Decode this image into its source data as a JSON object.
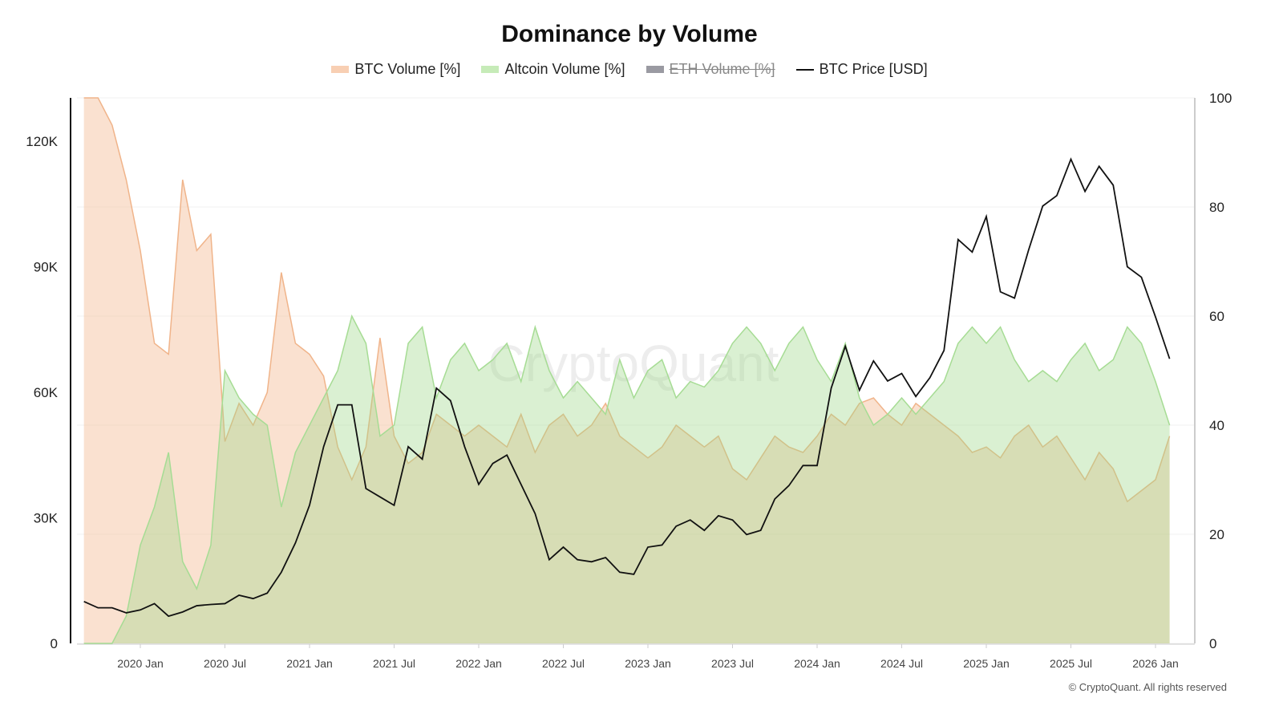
{
  "chart_data": {
    "type": "area",
    "title": "Dominance by Volume",
    "legend_position": "top",
    "grid": true,
    "x": [
      "2019-09",
      "2019-10",
      "2019-11",
      "2019-12",
      "2020-01",
      "2020-02",
      "2020-03",
      "2020-04",
      "2020-05",
      "2020-06",
      "2020-07",
      "2020-08",
      "2020-09",
      "2020-10",
      "2020-11",
      "2020-12",
      "2021-01",
      "2021-02",
      "2021-03",
      "2021-04",
      "2021-05",
      "2021-06",
      "2021-07",
      "2021-08",
      "2021-09",
      "2021-10",
      "2021-11",
      "2021-12",
      "2022-01",
      "2022-02",
      "2022-03",
      "2022-04",
      "2022-05",
      "2022-06",
      "2022-07",
      "2022-08",
      "2022-09",
      "2022-10",
      "2022-11",
      "2022-12",
      "2023-01",
      "2023-02",
      "2023-03",
      "2023-04",
      "2023-05",
      "2023-06",
      "2023-07",
      "2023-08",
      "2023-09",
      "2023-10",
      "2023-11",
      "2023-12",
      "2024-01",
      "2024-02",
      "2024-03",
      "2024-04",
      "2024-05",
      "2024-06",
      "2024-07",
      "2024-08",
      "2024-09",
      "2024-10",
      "2024-11",
      "2024-12",
      "2025-01",
      "2025-02",
      "2025-03",
      "2025-04",
      "2025-05",
      "2025-06",
      "2025-07",
      "2025-08",
      "2025-09",
      "2025-10",
      "2025-11",
      "2025-12",
      "2026-01",
      "2026-02"
    ],
    "x_ticks": [
      "2020 Jan",
      "2020 Jul",
      "2021 Jan",
      "2021 Jul",
      "2022 Jan",
      "2022 Jul",
      "2023 Jan",
      "2023 Jul",
      "2024 Jan",
      "2024 Jul",
      "2025 Jan",
      "2025 Jul",
      "2026 Jan"
    ],
    "y_left": {
      "ticks": [
        "0",
        "30K",
        "60K",
        "90K",
        "120K"
      ],
      "range": [
        0,
        130000
      ]
    },
    "y_right": {
      "ticks": [
        "0",
        "20",
        "40",
        "60",
        "80",
        "100"
      ],
      "range": [
        0,
        100
      ]
    },
    "series": [
      {
        "name": "BTC Volume [%]",
        "axis": "right",
        "kind": "area",
        "color": "#f0b48a",
        "visible": true,
        "values": [
          100,
          100,
          95,
          85,
          72,
          55,
          53,
          85,
          72,
          75,
          37,
          44,
          40,
          46,
          68,
          55,
          53,
          49,
          36,
          30,
          36,
          56,
          38,
          33,
          35,
          42,
          40,
          38,
          40,
          38,
          36,
          42,
          35,
          40,
          42,
          38,
          40,
          44,
          38,
          36,
          34,
          36,
          40,
          38,
          36,
          38,
          32,
          30,
          34,
          38,
          36,
          35,
          38,
          42,
          40,
          44,
          45,
          42,
          40,
          44,
          42,
          40,
          38,
          35,
          36,
          34,
          38,
          40,
          36,
          38,
          34,
          30,
          35,
          32,
          26,
          28,
          30,
          38
        ]
      },
      {
        "name": "Altcoin Volume [%]",
        "axis": "right",
        "kind": "area",
        "color": "#a6dc94",
        "visible": true,
        "values": [
          0,
          0,
          0,
          5,
          18,
          25,
          35,
          15,
          10,
          18,
          50,
          45,
          42,
          40,
          25,
          35,
          40,
          45,
          50,
          60,
          55,
          38,
          40,
          55,
          58,
          45,
          52,
          55,
          50,
          52,
          55,
          48,
          58,
          50,
          45,
          48,
          45,
          42,
          52,
          45,
          50,
          52,
          45,
          48,
          47,
          50,
          55,
          58,
          55,
          50,
          55,
          58,
          52,
          48,
          55,
          45,
          40,
          42,
          45,
          42,
          45,
          48,
          55,
          58,
          55,
          58,
          52,
          48,
          50,
          48,
          52,
          55,
          50,
          52,
          58,
          55,
          48,
          40
        ]
      },
      {
        "name": "ETH Volume [%]",
        "axis": "right",
        "kind": "area",
        "color": "#7d7d85",
        "visible": false
      },
      {
        "name": "BTC Price [USD]",
        "axis": "left",
        "kind": "line",
        "color": "#111111",
        "visible": true,
        "values": [
          10000,
          8500,
          8500,
          7300,
          8000,
          9500,
          6500,
          7500,
          9000,
          9300,
          9500,
          11500,
          10700,
          12000,
          17000,
          24000,
          33000,
          47000,
          57000,
          57000,
          37000,
          35000,
          33000,
          47000,
          44000,
          61000,
          58000,
          47000,
          38000,
          43000,
          45000,
          38000,
          31000,
          20000,
          23000,
          20000,
          19500,
          20500,
          17000,
          16500,
          23000,
          23500,
          28000,
          29500,
          27000,
          30500,
          29500,
          26000,
          27000,
          34500,
          37700,
          42500,
          42500,
          61000,
          71000,
          60500,
          67500,
          62700,
          64500,
          59000,
          63500,
          70000,
          96500,
          93500,
          102000,
          84000,
          82500,
          94000,
          104500,
          107000,
          115700,
          108000,
          114000,
          109500,
          90000,
          87500,
          78000,
          68000
        ]
      }
    ],
    "watermark": "CryptoQuant"
  },
  "footer": {
    "copyright": "© CryptoQuant. All rights reserved"
  }
}
